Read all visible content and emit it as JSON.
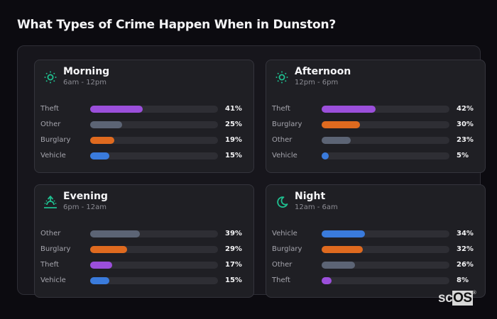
{
  "title": "What Types of Crime Happen When in Dunston?",
  "colors": {
    "theft": "#9b4fdb",
    "other": "#5c6475",
    "burglary": "#df6a1f",
    "vehicle": "#3a7bdc",
    "accent_icon": "#1fbf8f"
  },
  "cards": [
    {
      "title": "Morning",
      "subtitle": "6am - 12pm",
      "icon": "sun-icon",
      "rows": [
        {
          "label": "Theft",
          "value": 41,
          "pct": "41%",
          "category": "theft"
        },
        {
          "label": "Other",
          "value": 25,
          "pct": "25%",
          "category": "other"
        },
        {
          "label": "Burglary",
          "value": 19,
          "pct": "19%",
          "category": "burglary"
        },
        {
          "label": "Vehicle",
          "value": 15,
          "pct": "15%",
          "category": "vehicle"
        }
      ]
    },
    {
      "title": "Afternoon",
      "subtitle": "12pm - 6pm",
      "icon": "sun-icon",
      "rows": [
        {
          "label": "Theft",
          "value": 42,
          "pct": "42%",
          "category": "theft"
        },
        {
          "label": "Burglary",
          "value": 30,
          "pct": "30%",
          "category": "burglary"
        },
        {
          "label": "Other",
          "value": 23,
          "pct": "23%",
          "category": "other"
        },
        {
          "label": "Vehicle",
          "value": 5,
          "pct": "5%",
          "category": "vehicle"
        }
      ]
    },
    {
      "title": "Evening",
      "subtitle": "6pm - 12am",
      "icon": "sunset-icon",
      "rows": [
        {
          "label": "Other",
          "value": 39,
          "pct": "39%",
          "category": "other"
        },
        {
          "label": "Burglary",
          "value": 29,
          "pct": "29%",
          "category": "burglary"
        },
        {
          "label": "Theft",
          "value": 17,
          "pct": "17%",
          "category": "theft"
        },
        {
          "label": "Vehicle",
          "value": 15,
          "pct": "15%",
          "category": "vehicle"
        }
      ]
    },
    {
      "title": "Night",
      "subtitle": "12am - 6am",
      "icon": "moon-icon",
      "rows": [
        {
          "label": "Vehicle",
          "value": 34,
          "pct": "34%",
          "category": "vehicle"
        },
        {
          "label": "Burglary",
          "value": 32,
          "pct": "32%",
          "category": "burglary"
        },
        {
          "label": "Other",
          "value": 26,
          "pct": "26%",
          "category": "other"
        },
        {
          "label": "Theft",
          "value": 8,
          "pct": "8%",
          "category": "theft"
        }
      ]
    }
  ],
  "logo": {
    "prefix": "sc",
    "boxed": "OS",
    "mark": "®"
  }
}
